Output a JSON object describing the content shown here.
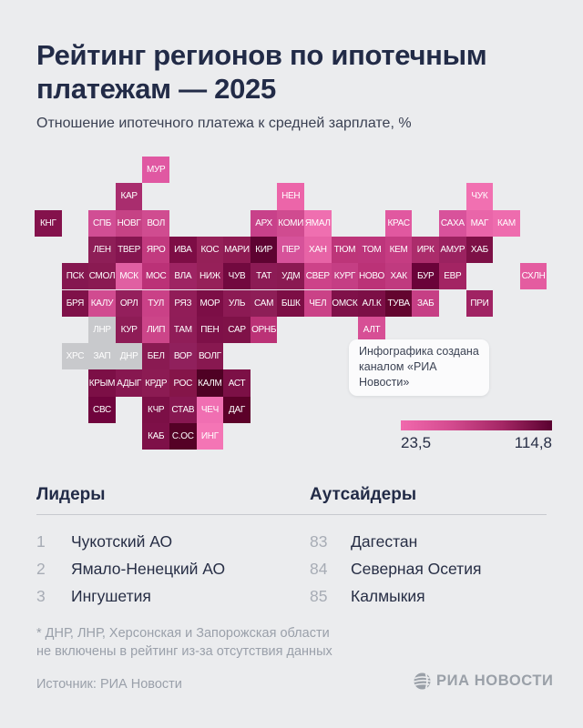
{
  "header": {
    "title_line1": "Рейтинг регионов по ипотечным",
    "title_line2": "платежам — 2025",
    "subtitle": "Отношение ипотечного платежа к средней зарплате, %"
  },
  "tooltip": {
    "line1": "Инфографика создана",
    "line2": "каналом «РИА Новости»"
  },
  "legend": {
    "min_label": "23,5",
    "max_label": "114,8",
    "gradient_stops": [
      "#f169ad",
      "#d44b8f",
      "#a52765",
      "#5a0130"
    ]
  },
  "leaders": {
    "heading": "Лидеры",
    "items": [
      {
        "rank": "1",
        "name": "Чукотский АО"
      },
      {
        "rank": "2",
        "name": "Ямало-Ненецкий АО"
      },
      {
        "rank": "3",
        "name": "Ингушетия"
      }
    ]
  },
  "outsiders": {
    "heading": "Аутсайдеры",
    "items": [
      {
        "rank": "83",
        "name": "Дагестан"
      },
      {
        "rank": "84",
        "name": "Северная Осетия"
      },
      {
        "rank": "85",
        "name": "Калмыкия"
      }
    ]
  },
  "footnote": {
    "line1": "* ДНР, ЛНР, Херсонская и Запорожская области",
    "line2": "не включены в рейтинг из-за отсутствия данных"
  },
  "footer": {
    "source": "Источник: РИА Новости",
    "logo_text": "РИА НОВОСТИ"
  },
  "chart_data": {
    "type": "heatmap",
    "title": "Рейтинг регионов по ипотечным платежам — 2025",
    "subtitle": "Отношение ипотечного платежа к средней зарплате, %",
    "colorbar": {
      "min": 23.5,
      "max": 114.8,
      "min_label": "23,5",
      "max_label": "114,8"
    },
    "excluded_regions": [
      "ДНР",
      "ЛНР",
      "ХРС",
      "ЗАП"
    ],
    "excluded_color": "#c8c9cc",
    "leaders": [
      {
        "rank": 1,
        "region": "Чукотский АО"
      },
      {
        "rank": 2,
        "region": "Ямало-Ненецкий АО"
      },
      {
        "rank": 3,
        "region": "Ингушетия"
      }
    ],
    "outsiders": [
      {
        "rank": 83,
        "region": "Дагестан"
      },
      {
        "rank": 84,
        "region": "Северная Осетия"
      },
      {
        "rank": 85,
        "region": "Калмыкия"
      }
    ],
    "regions": [
      {
        "label": "МУР",
        "col": 4,
        "row": 0,
        "color": "#e058a2"
      },
      {
        "label": "КАР",
        "col": 3,
        "row": 1,
        "color": "#a92d6e"
      },
      {
        "label": "НЕН",
        "col": 9,
        "row": 1,
        "color": "#ec65a9"
      },
      {
        "label": "ЧУК",
        "col": 16,
        "row": 1,
        "color": "#f170b1"
      },
      {
        "label": "КНГ",
        "col": 0,
        "row": 2,
        "color": "#84124c"
      },
      {
        "label": "СПБ",
        "col": 2,
        "row": 2,
        "color": "#d14e94"
      },
      {
        "label": "НОВГ",
        "col": 3,
        "row": 2,
        "color": "#c64285"
      },
      {
        "label": "ВОЛ",
        "col": 4,
        "row": 2,
        "color": "#d04c90"
      },
      {
        "label": "АРХ",
        "col": 8,
        "row": 2,
        "color": "#c8418a"
      },
      {
        "label": "КОМИ",
        "col": 9,
        "row": 2,
        "color": "#d04b90"
      },
      {
        "label": "ЯМАЛ",
        "col": 10,
        "row": 2,
        "color": "#ef6fb0"
      },
      {
        "label": "КРАС",
        "col": 13,
        "row": 2,
        "color": "#e158a0"
      },
      {
        "label": "САХА",
        "col": 15,
        "row": 2,
        "color": "#d8529b"
      },
      {
        "label": "МАГ",
        "col": 16,
        "row": 2,
        "color": "#e965a9"
      },
      {
        "label": "КАМ",
        "col": 17,
        "row": 2,
        "color": "#ee6cae"
      },
      {
        "label": "ЛЕН",
        "col": 2,
        "row": 3,
        "color": "#8e1e57"
      },
      {
        "label": "ТВЕР",
        "col": 3,
        "row": 3,
        "color": "#851550"
      },
      {
        "label": "ЯРО",
        "col": 4,
        "row": 3,
        "color": "#c23a7f"
      },
      {
        "label": "ИВА",
        "col": 5,
        "row": 3,
        "color": "#7d0d45"
      },
      {
        "label": "КОС",
        "col": 6,
        "row": 3,
        "color": "#952058"
      },
      {
        "label": "МАРИ",
        "col": 7,
        "row": 3,
        "color": "#8e1a52"
      },
      {
        "label": "КИР",
        "col": 8,
        "row": 3,
        "color": "#5e0331"
      },
      {
        "label": "ПЕР",
        "col": 9,
        "row": 3,
        "color": "#d6529a"
      },
      {
        "label": "ХАН",
        "col": 10,
        "row": 3,
        "color": "#e763a6"
      },
      {
        "label": "ТЮМ",
        "col": 11,
        "row": 3,
        "color": "#bd3579"
      },
      {
        "label": "ТОМ",
        "col": 12,
        "row": 3,
        "color": "#bd357b"
      },
      {
        "label": "КЕМ",
        "col": 13,
        "row": 3,
        "color": "#c53c82"
      },
      {
        "label": "ИРК",
        "col": 14,
        "row": 3,
        "color": "#ab2c6b"
      },
      {
        "label": "АМУР",
        "col": 15,
        "row": 3,
        "color": "#9b2260"
      },
      {
        "label": "ХАБ",
        "col": 16,
        "row": 3,
        "color": "#7d1046"
      },
      {
        "label": "ПСК",
        "col": 1,
        "row": 4,
        "color": "#851750"
      },
      {
        "label": "СМОЛ",
        "col": 2,
        "row": 4,
        "color": "#8a1a52"
      },
      {
        "label": "МСК",
        "col": 3,
        "row": 4,
        "color": "#e05fa2"
      },
      {
        "label": "МОС",
        "col": 4,
        "row": 4,
        "color": "#bb3177"
      },
      {
        "label": "ВЛА",
        "col": 5,
        "row": 4,
        "color": "#9e2463"
      },
      {
        "label": "НИЖ",
        "col": 6,
        "row": 4,
        "color": "#962059"
      },
      {
        "label": "ЧУВ",
        "col": 7,
        "row": 4,
        "color": "#72093f"
      },
      {
        "label": "ТАТ",
        "col": 8,
        "row": 4,
        "color": "#8c1b55"
      },
      {
        "label": "УДМ",
        "col": 9,
        "row": 4,
        "color": "#8a1a52"
      },
      {
        "label": "СВЕР",
        "col": 10,
        "row": 4,
        "color": "#cd4389"
      },
      {
        "label": "КУРГ",
        "col": 11,
        "row": 4,
        "color": "#c53e84"
      },
      {
        "label": "НОВО",
        "col": 12,
        "row": 4,
        "color": "#bb3277"
      },
      {
        "label": "ХАК",
        "col": 13,
        "row": 4,
        "color": "#c03a7f"
      },
      {
        "label": "БУР",
        "col": 14,
        "row": 4,
        "color": "#6a0339"
      },
      {
        "label": "ЕВР",
        "col": 15,
        "row": 4,
        "color": "#a32463"
      },
      {
        "label": "СХЛН",
        "col": 18,
        "row": 4,
        "color": "#e45ca0"
      },
      {
        "label": "БРЯ",
        "col": 1,
        "row": 5,
        "color": "#7f1149"
      },
      {
        "label": "КАЛУ",
        "col": 2,
        "row": 5,
        "color": "#d14b90"
      },
      {
        "label": "ОРЛ",
        "col": 3,
        "row": 5,
        "color": "#941f5c"
      },
      {
        "label": "ТУЛ",
        "col": 4,
        "row": 5,
        "color": "#ca4187"
      },
      {
        "label": "РЯЗ",
        "col": 5,
        "row": 5,
        "color": "#911d58"
      },
      {
        "label": "МОР",
        "col": 6,
        "row": 5,
        "color": "#7c0e46"
      },
      {
        "label": "УЛЬ",
        "col": 7,
        "row": 5,
        "color": "#8c1a54"
      },
      {
        "label": "САМ",
        "col": 8,
        "row": 5,
        "color": "#8e1e57"
      },
      {
        "label": "БШК",
        "col": 9,
        "row": 5,
        "color": "#7c0e45"
      },
      {
        "label": "ЧЕЛ",
        "col": 10,
        "row": 5,
        "color": "#ca4287"
      },
      {
        "label": "ОМСК",
        "col": 11,
        "row": 5,
        "color": "#7f1149"
      },
      {
        "label": "АЛ.К",
        "col": 12,
        "row": 5,
        "color": "#7c0f46"
      },
      {
        "label": "ТУВА",
        "col": 13,
        "row": 5,
        "color": "#63052f"
      },
      {
        "label": "ЗАБ",
        "col": 14,
        "row": 5,
        "color": "#c63f85"
      },
      {
        "label": "ПРИ",
        "col": 16,
        "row": 5,
        "color": "#a02363"
      },
      {
        "label": "ЛНР",
        "col": 2,
        "row": 6,
        "color": "#c8c9cc"
      },
      {
        "label": "КУР",
        "col": 3,
        "row": 6,
        "color": "#8e1c56"
      },
      {
        "label": "ЛИП",
        "col": 4,
        "row": 6,
        "color": "#cc4589"
      },
      {
        "label": "ТАМ",
        "col": 5,
        "row": 6,
        "color": "#901d58"
      },
      {
        "label": "ПЕН",
        "col": 6,
        "row": 6,
        "color": "#7e1048"
      },
      {
        "label": "САР",
        "col": 7,
        "row": 6,
        "color": "#7f1248"
      },
      {
        "label": "ОРНБ",
        "col": 8,
        "row": 6,
        "color": "#bb3276"
      },
      {
        "label": "АЛТ",
        "col": 12,
        "row": 6,
        "color": "#d74f95"
      },
      {
        "label": "ХРС",
        "col": 1,
        "row": 7,
        "color": "#c8c9cc"
      },
      {
        "label": "ЗАП",
        "col": 2,
        "row": 7,
        "color": "#c8c9cc"
      },
      {
        "label": "ДНР",
        "col": 3,
        "row": 7,
        "color": "#c8c9cc"
      },
      {
        "label": "БЕЛ",
        "col": 4,
        "row": 7,
        "color": "#8a1a52"
      },
      {
        "label": "ВОР",
        "col": 5,
        "row": 7,
        "color": "#90205c"
      },
      {
        "label": "ВОЛГ",
        "col": 6,
        "row": 7,
        "color": "#881850"
      },
      {
        "label": "КРЫМ",
        "col": 2,
        "row": 8,
        "color": "#7c0f46"
      },
      {
        "label": "АДЫГ",
        "col": 3,
        "row": 8,
        "color": "#871750"
      },
      {
        "label": "КРДР",
        "col": 4,
        "row": 8,
        "color": "#8c1b53"
      },
      {
        "label": "РОС",
        "col": 5,
        "row": 8,
        "color": "#851549"
      },
      {
        "label": "КАЛМ",
        "col": 6,
        "row": 8,
        "color": "#4f0124"
      },
      {
        "label": "АСТ",
        "col": 7,
        "row": 8,
        "color": "#7c1046"
      },
      {
        "label": "СВС",
        "col": 2,
        "row": 9,
        "color": "#70043d"
      },
      {
        "label": "КЧР",
        "col": 4,
        "row": 9,
        "color": "#7c0f46"
      },
      {
        "label": "СТАВ",
        "col": 5,
        "row": 9,
        "color": "#871751"
      },
      {
        "label": "ЧЕЧ",
        "col": 6,
        "row": 9,
        "color": "#f06fb2"
      },
      {
        "label": "ДАГ",
        "col": 7,
        "row": 9,
        "color": "#5c0129"
      },
      {
        "label": "КАБ",
        "col": 4,
        "row": 10,
        "color": "#7e1048"
      },
      {
        "label": "С.ОС",
        "col": 5,
        "row": 10,
        "color": "#550126"
      },
      {
        "label": "ИНГ",
        "col": 6,
        "row": 10,
        "color": "#f475b5"
      }
    ]
  }
}
